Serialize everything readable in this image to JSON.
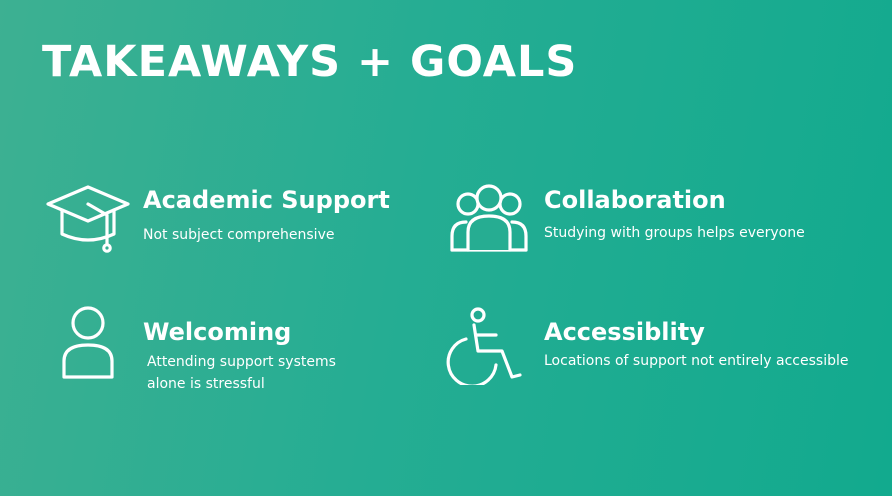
{
  "slide": {
    "title": "TAKEAWAYS + GOALS",
    "items": [
      {
        "title": "Academic Support",
        "description_lines": [
          "Not subject comprehensive"
        ],
        "icon": "graduation-cap-icon"
      },
      {
        "title": "Collaboration",
        "description_lines": [
          "Studying with groups helps everyone"
        ],
        "icon": "group-icon"
      },
      {
        "title": "Welcoming",
        "description_lines": [
          "Attending support systems",
          "alone is stressful"
        ],
        "icon": "person-icon"
      },
      {
        "title": "Accessiblity",
        "description_lines": [
          "Locations of support not entirely accessible"
        ],
        "icon": "wheelchair-icon"
      }
    ]
  },
  "colors": {
    "background_start": "#3db092",
    "background_end": "#12aa8e",
    "text": "#ffffff"
  }
}
